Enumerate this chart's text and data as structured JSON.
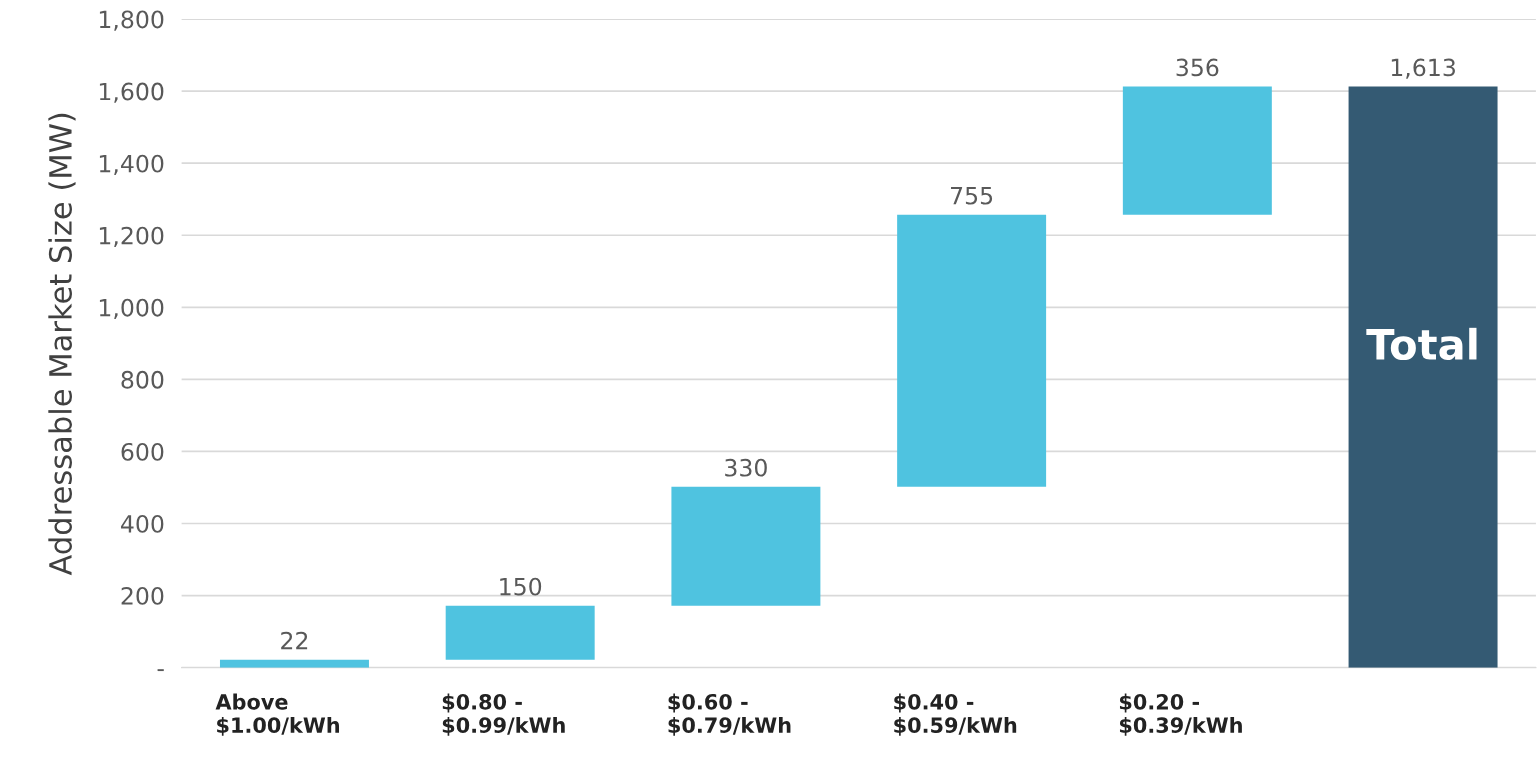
{
  "chart_data": {
    "type": "bar",
    "ylabel": "Addressable Market Size (MW)",
    "categories": [
      "Above\n$1.00/kWh",
      "$0.80 -\n$0.99/kWh",
      "$0.60 -\n$0.79/kWh",
      "$0.40 -\n$0.59/kWh",
      "$0.20 -\n$0.39/kWh",
      null
    ],
    "values": [
      22,
      150,
      330,
      755,
      356,
      1613
    ],
    "base": [
      0,
      22,
      172,
      502,
      1257,
      0
    ],
    "colors": [
      "#4fc3e0",
      "#4fc3e0",
      "#4fc3e0",
      "#4fc3e0",
      "#4fc3e0",
      "#345a73"
    ],
    "value_labels": [
      "22",
      "150",
      "330",
      "755",
      "356",
      "1,613"
    ],
    "annotations": [
      "Total"
    ],
    "ylim": [
      0,
      1800
    ],
    "yticks": [
      {
        "value": 0,
        "label": "-"
      },
      {
        "value": 200,
        "label": "200"
      },
      {
        "value": 400,
        "label": "400"
      },
      {
        "value": 600,
        "label": "600"
      },
      {
        "value": 800,
        "label": "800"
      },
      {
        "value": 1000,
        "label": "1,000"
      },
      {
        "value": 1200,
        "label": "1,200"
      },
      {
        "value": 1400,
        "label": "1,400"
      },
      {
        "value": 1600,
        "label": "1,600"
      },
      {
        "value": 1800,
        "label": "1,800"
      }
    ],
    "grid": "y"
  }
}
